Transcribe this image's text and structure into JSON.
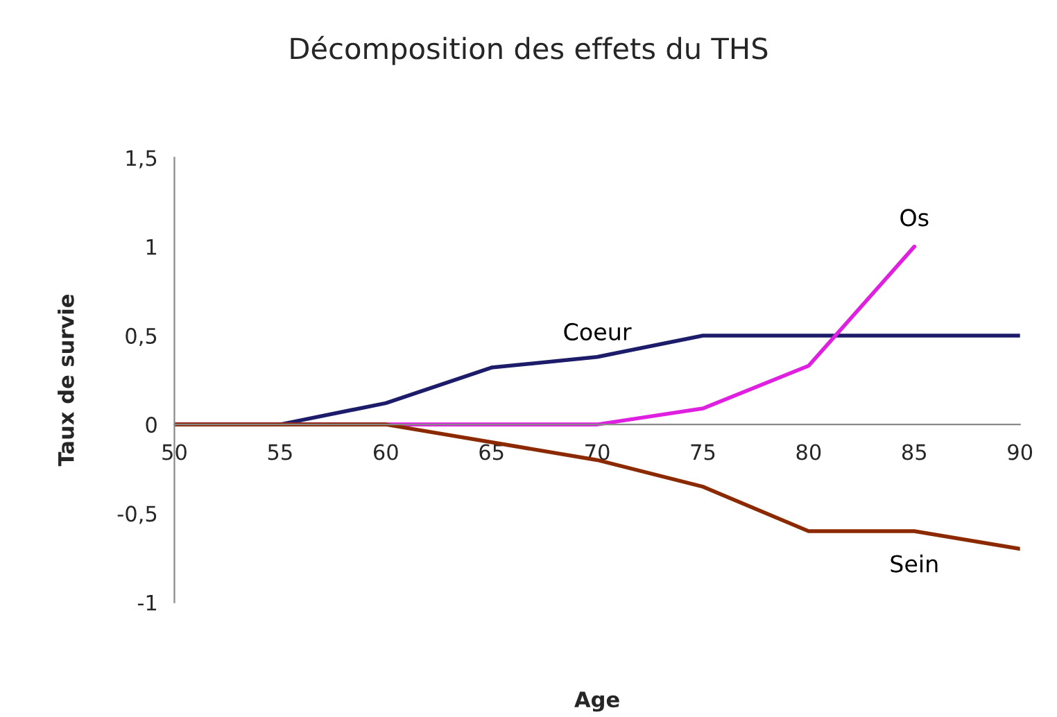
{
  "chart_data": {
    "type": "line",
    "title": "Décomposition des effets du THS",
    "xlabel": "Age",
    "ylabel": "Taux de survie",
    "x": [
      50,
      55,
      60,
      65,
      70,
      75,
      80,
      85,
      90
    ],
    "series": [
      {
        "name": "Coeur",
        "color": "#1c1c6a",
        "values": [
          0,
          0,
          0.12,
          0.32,
          0.38,
          0.5,
          0.5,
          0.5,
          0.5
        ]
      },
      {
        "name": "Os",
        "color": "#e020e0",
        "values": [
          0,
          0,
          0,
          0,
          0,
          0.09,
          0.33,
          1,
          null
        ]
      },
      {
        "name": "Sein",
        "color": "#8b2a00",
        "values": [
          0,
          0,
          0,
          -0.1,
          -0.2,
          -0.35,
          -0.6,
          -0.6,
          -0.7
        ]
      }
    ],
    "xlim": [
      50,
      90
    ],
    "xticks": [
      50,
      55,
      60,
      65,
      70,
      75,
      80,
      85,
      90
    ],
    "ylim": [
      -1,
      1.5
    ],
    "yticks": [
      {
        "value": -1,
        "label": "-1"
      },
      {
        "value": -0.5,
        "label": "-0,5"
      },
      {
        "value": 0,
        "label": "0"
      },
      {
        "value": 0.5,
        "label": "0,5"
      },
      {
        "value": 1,
        "label": "1"
      },
      {
        "value": 1.5,
        "label": "1,5"
      }
    ],
    "grid": false,
    "legend": false,
    "marker": "none",
    "line_style": "solid"
  }
}
